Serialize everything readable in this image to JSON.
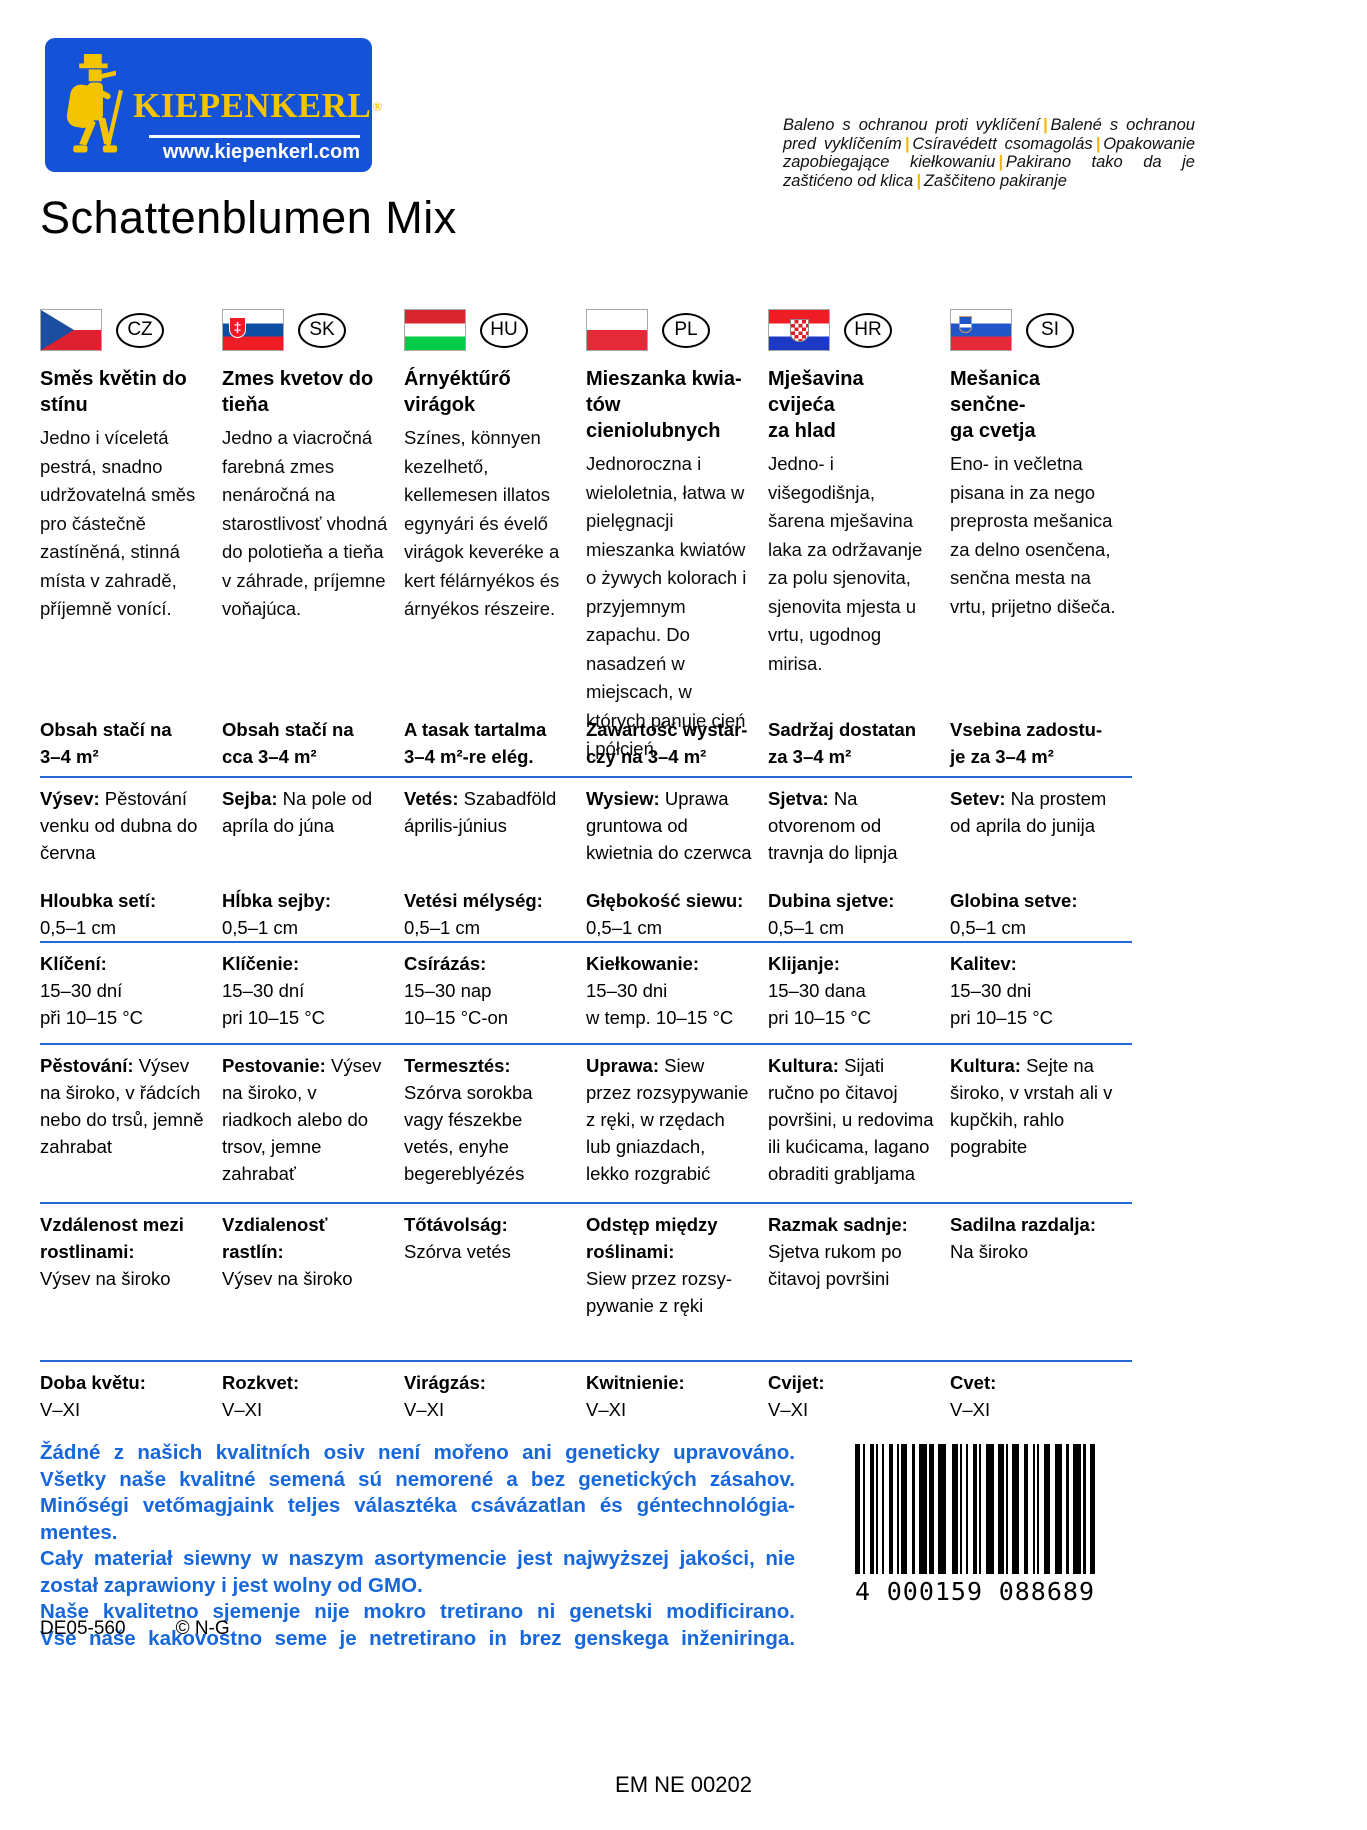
{
  "logo": {
    "brand": "KIEPENKERL",
    "reg": "®",
    "url": "www.kiepenkerl.com"
  },
  "top_note": {
    "parts": [
      "Baleno s ochranou proti vyklíčení",
      "Balené s ochranou pred vyklíčením",
      "Csíravédett csomagolás",
      "Opakowanie zapobiegające kiełkowaniu",
      "Pakirano tako da je zaštićeno od klica",
      "Zaščiteno pakiranje"
    ]
  },
  "title": "Schattenblumen Mix",
  "languages": [
    {
      "code": "CZ",
      "flag": "cz",
      "heading": "Směs květin do\nstínu",
      "description": "Jedno i víceletá pestrá, snadno udržovatelná směs pro částečně zastíněná, stinná místa v zahradě, příjemně vonící."
    },
    {
      "code": "SK",
      "flag": "sk",
      "heading": "Zmes kvetov do\ntieňa",
      "description": "Jedno a viacročná farebná zmes nenáročná na starostlivosť vhodná do polotieňa a tieňa v záhrade, príjemne voňajúca."
    },
    {
      "code": "HU",
      "flag": "hu",
      "heading": "Árnyéktűrő\nvirágok",
      "description": "Színes, könnyen kezelhető, kellemesen illatos egynyári és évelő virágok keveréke a kert félárnyékos és árnyékos részeire."
    },
    {
      "code": "PL",
      "flag": "pl",
      "heading": "Mieszanka kwia-\ntów cieniolubnych",
      "description": "Jednoroczna i wieloletnia, łatwa w pielęgnacji mieszanka kwiatów o żywych kolorach i przyjemnym zapachu. Do nasadzeń w miejscach, w których panuje cień i półcień."
    },
    {
      "code": "HR",
      "flag": "hr",
      "heading": "Mješavina cvijeća\nza hlad",
      "description": "Jedno- i višegodišnja, šarena mješavina laka za održavanje za polu sjenovita, sjenovita mjesta u vrtu, ugodnog mirisa."
    },
    {
      "code": "SI",
      "flag": "si",
      "heading": "Mešanica senčne-\nga cvetja",
      "description": "Eno- in večletna pisana in za nego preprosta mešanica za delno osenčena, senčna mesta na vrtu, prijetno dišeča."
    }
  ],
  "table": {
    "rows": [
      {
        "name": "content-coverage",
        "cells": [
          {
            "b": "Obsah stačí na\n3–4 m²"
          },
          {
            "b": "Obsah stačí na\ncca 3–4 m²"
          },
          {
            "b": "A tasak tartalma\n3–4 m²-re elég."
          },
          {
            "b": "Zawartość wystar-\nczy na 3–4 m²"
          },
          {
            "b": "Sadržaj dostatan\nza 3–4 m²"
          },
          {
            "b": "Vsebina zadostu-\nje za 3–4 m²"
          }
        ]
      },
      {
        "name": "sowing",
        "cells": [
          {
            "b": "Výsev:",
            "t": "Pěstování venku od dubna do června"
          },
          {
            "b": "Sejba:",
            "t": "Na pole od apríla do júna"
          },
          {
            "b": "Vetés:",
            "t": "Szabadföld április-június"
          },
          {
            "b": "Wysiew:",
            "t": "Uprawa gruntowa od kwietnia do czerwca"
          },
          {
            "b": "Sjetva:",
            "t": "Na otvorenom od travnja do lipnja"
          },
          {
            "b": "Setev:",
            "t": "Na prostem od aprila do junija"
          }
        ]
      },
      {
        "name": "sowing-depth",
        "cells": [
          {
            "b": "Hloubka setí:",
            "t": "0,5–1 cm"
          },
          {
            "b": "Hĺbka sejby:",
            "t": "0,5–1 cm"
          },
          {
            "b": "Vetési mélység:",
            "t": "0,5–1 cm"
          },
          {
            "b": "Głębokość siewu:",
            "t": "0,5–1 cm"
          },
          {
            "b": "Dubina sjetve:",
            "t": "0,5–1 cm"
          },
          {
            "b": "Globina setve:",
            "t": "0,5–1 cm"
          }
        ]
      },
      {
        "name": "germination",
        "cells": [
          {
            "b": "Klíčení:",
            "t": "15–30 dní\npři 10–15 °C"
          },
          {
            "b": "Klíčenie:",
            "t": "15–30 dní\npri 10–15 °C"
          },
          {
            "b": "Csírázás:",
            "t": "15–30 nap\n10–15 °C-on"
          },
          {
            "b": "Kiełkowanie:",
            "t": "15–30 dni\nw temp. 10–15 °C"
          },
          {
            "b": "Klijanje:",
            "t": "15–30 dana\npri 10–15 °C"
          },
          {
            "b": "Kalitev:",
            "t": "15–30 dni\npri 10–15 °C"
          }
        ]
      },
      {
        "name": "culture",
        "cells": [
          {
            "b": "Pěstování:",
            "t": "Výsev na široko, v řádcích nebo do trsů, jemně zahrabat"
          },
          {
            "b": "Pestovanie:",
            "t": "Výsev na široko, v riadkoch alebo do trsov, jemne zahrabať"
          },
          {
            "b": "Termesztés:",
            "t": "Szórva sorokba vagy fészekbe vetés, enyhe begereblyézés"
          },
          {
            "b": "Uprawa:",
            "t": "Siew przez rozsypywanie z ręki, w rzędach lub gniazdach, lekko rozgrabić"
          },
          {
            "b": "Kultura:",
            "t": "Sijati ručno po čitavoj površini, u redovima ili kućicama, lagano obraditi grabljama"
          },
          {
            "b": "Kultura:",
            "t": "Sejte na široko, v vrstah ali v kupčkih, rahlo pograbite"
          }
        ]
      },
      {
        "name": "plant-spacing",
        "cells": [
          {
            "b": "Vzdálenost mezi\nrostlinami:",
            "t": "Výsev na široko"
          },
          {
            "b": "Vzdialenosť\nrastlín:",
            "t": "Výsev na široko"
          },
          {
            "b": "Tőtávolság:",
            "t": "Szórva vetés"
          },
          {
            "b": "Odstęp między\nroślinami:",
            "t": "Siew przez rozsy-\npywanie z ręki"
          },
          {
            "b": "Razmak sadnje:",
            "t": "Sjetva rukom po\nčitavoj površini"
          },
          {
            "b": "Sadilna razdalja:",
            "t": "Na široko"
          }
        ]
      },
      {
        "name": "flowering-time",
        "cells": [
          {
            "b": "Doba květu:",
            "t": "V–XI"
          },
          {
            "b": "Rozkvet:",
            "t": "V–XI"
          },
          {
            "b": "Virágzás:",
            "t": "V–XI"
          },
          {
            "b": "Kwitnienie:",
            "t": "V–XI"
          },
          {
            "b": "Cvijet:",
            "t": "V–XI"
          },
          {
            "b": "Cvet:",
            "t": "V–XI"
          }
        ]
      }
    ]
  },
  "gmo_note": {
    "lines": [
      "Žádné z našich kvalitních osiv není mořeno ani geneticky upravováno.",
      "Všetky naše kvalitné semená sú nemorené a bez genetických zásahov.",
      "Minőségi vetőmagjaink teljes választéka csávázatlan és géntechnológia-mentes.",
      "Cały materiał siewny w naszym asortymencie jest najwyższej jakości, nie został zaprawiony i jest wolny od GMO.",
      "Naše kvalitetno sjemenje nije mokro tretirano ni genetski modificirano.",
      "Vse naše kakovostno seme je netretirano in brez genskega inženiringa."
    ]
  },
  "barcode": {
    "number": "4000159088689",
    "display": {
      "prefix": "4",
      "group1": "000159",
      "group2": "088689"
    }
  },
  "footer": {
    "code1": "DE05-560",
    "code2": "© N-G",
    "em": "EM NE 00202"
  },
  "colors": {
    "logo_blue": "#1452d8",
    "brand_yellow": "#F5C400",
    "rule_blue": "#2468d8",
    "gmo_blue": "#1667DB"
  }
}
